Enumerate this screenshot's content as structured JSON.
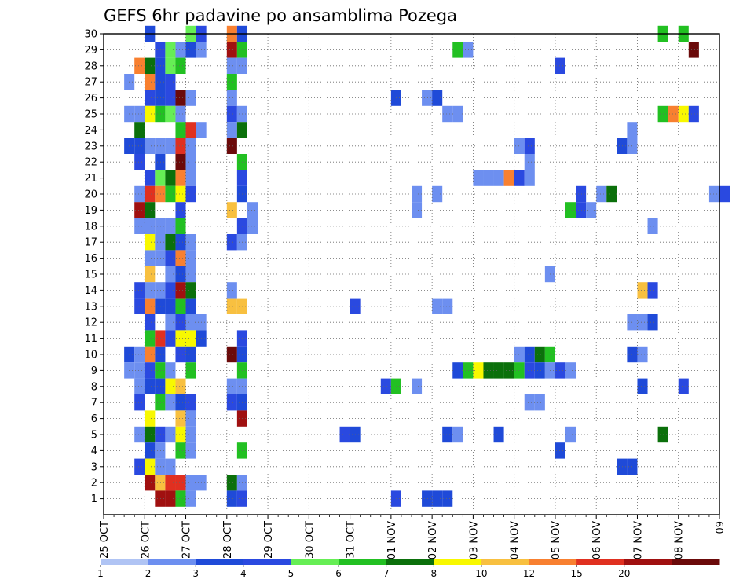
{
  "chart_data": {
    "type": "heatmap",
    "title": "GEFS 6hr padavine po ansamblima Pozega",
    "x_ticks": [
      "25 OCT",
      "26 OCT",
      "27 OCT",
      "28 OCT",
      "29 OCT",
      "30 OCT",
      "31 OCT",
      "01 NOV",
      "02 NOV",
      "03 NOV",
      "04 NOV",
      "05 NOV",
      "06 NOV",
      "07 NOV",
      "08 NOV",
      "09"
    ],
    "y_ticks": [
      "1",
      "2",
      "3",
      "4",
      "5",
      "6",
      "7",
      "8",
      "9",
      "10",
      "11",
      "12",
      "13",
      "14",
      "15",
      "16",
      "17",
      "18",
      "19",
      "20",
      "21",
      "22",
      "23",
      "24",
      "25",
      "26",
      "27",
      "28",
      "29",
      "30"
    ],
    "x_range_days": [
      0,
      15
    ],
    "y_range": [
      0,
      30
    ],
    "grid": true,
    "legend_placement": "bottom",
    "legend": {
      "labels": [
        "1",
        "2",
        "3",
        "4",
        "5",
        "6",
        "7",
        "8",
        "10",
        "12",
        "15",
        "20"
      ],
      "colors": [
        "#b0c4f4",
        "#6d8ff0",
        "#1f4ad8",
        "#2a49e0",
        "#66ee55",
        "#22c022",
        "#0b700b",
        "#f8f800",
        "#f8c040",
        "#f88030",
        "#e03020",
        "#a01010",
        "#6b0a0a"
      ]
    },
    "cell_width_hours": 6,
    "cells": [
      {
        "m": 30,
        "t": 1.0,
        "c": 2
      },
      {
        "m": 30,
        "t": 2.0,
        "c": 4
      },
      {
        "m": 30,
        "t": 2.25,
        "c": 3
      },
      {
        "m": 30,
        "t": 3.0,
        "c": 9
      },
      {
        "m": 30,
        "t": 3.25,
        "c": 2
      },
      {
        "m": 30,
        "t": 13.5,
        "c": 5
      },
      {
        "m": 30,
        "t": 14.0,
        "c": 5
      },
      {
        "m": 29,
        "t": 1.25,
        "c": 3
      },
      {
        "m": 29,
        "t": 1.5,
        "c": 4
      },
      {
        "m": 29,
        "t": 1.75,
        "c": 1
      },
      {
        "m": 29,
        "t": 2.0,
        "c": 2
      },
      {
        "m": 29,
        "t": 2.25,
        "c": 1
      },
      {
        "m": 29,
        "t": 3.0,
        "c": 11
      },
      {
        "m": 29,
        "t": 3.25,
        "c": 5
      },
      {
        "m": 29,
        "t": 8.5,
        "c": 5
      },
      {
        "m": 29,
        "t": 8.75,
        "c": 1
      },
      {
        "m": 29,
        "t": 14.25,
        "c": 12
      },
      {
        "m": 28,
        "t": 0.75,
        "c": 9
      },
      {
        "m": 28,
        "t": 1.0,
        "c": 6
      },
      {
        "m": 28,
        "t": 1.25,
        "c": 2
      },
      {
        "m": 28,
        "t": 1.5,
        "c": 4
      },
      {
        "m": 28,
        "t": 1.75,
        "c": 5
      },
      {
        "m": 28,
        "t": 3.0,
        "c": 1
      },
      {
        "m": 28,
        "t": 3.25,
        "c": 1
      },
      {
        "m": 28,
        "t": 11.0,
        "c": 3
      },
      {
        "m": 27,
        "t": 0.5,
        "c": 1
      },
      {
        "m": 27,
        "t": 1.0,
        "c": 9
      },
      {
        "m": 27,
        "t": 1.25,
        "c": 2
      },
      {
        "m": 27,
        "t": 1.5,
        "c": 3
      },
      {
        "m": 27,
        "t": 3.0,
        "c": 5
      },
      {
        "m": 26,
        "t": 1.0,
        "c": 3
      },
      {
        "m": 26,
        "t": 1.25,
        "c": 2
      },
      {
        "m": 26,
        "t": 1.5,
        "c": 3
      },
      {
        "m": 26,
        "t": 1.75,
        "c": 12
      },
      {
        "m": 26,
        "t": 2.0,
        "c": 1
      },
      {
        "m": 26,
        "t": 3.0,
        "c": 1
      },
      {
        "m": 26,
        "t": 7.0,
        "c": 2
      },
      {
        "m": 26,
        "t": 7.75,
        "c": 1
      },
      {
        "m": 26,
        "t": 8.0,
        "c": 2
      },
      {
        "m": 25,
        "t": 0.5,
        "c": 1
      },
      {
        "m": 25,
        "t": 0.75,
        "c": 1
      },
      {
        "m": 25,
        "t": 1.0,
        "c": 7
      },
      {
        "m": 25,
        "t": 1.25,
        "c": 5
      },
      {
        "m": 25,
        "t": 1.5,
        "c": 4
      },
      {
        "m": 25,
        "t": 1.75,
        "c": 1
      },
      {
        "m": 25,
        "t": 3.0,
        "c": 3
      },
      {
        "m": 25,
        "t": 3.25,
        "c": 1
      },
      {
        "m": 25,
        "t": 8.25,
        "c": 1
      },
      {
        "m": 25,
        "t": 8.5,
        "c": 1
      },
      {
        "m": 25,
        "t": 13.5,
        "c": 5
      },
      {
        "m": 25,
        "t": 13.75,
        "c": 9
      },
      {
        "m": 25,
        "t": 14.0,
        "c": 7
      },
      {
        "m": 25,
        "t": 14.25,
        "c": 3
      },
      {
        "m": 24,
        "t": 0.75,
        "c": 6
      },
      {
        "m": 24,
        "t": 1.75,
        "c": 5
      },
      {
        "m": 24,
        "t": 2.0,
        "c": 10
      },
      {
        "m": 24,
        "t": 2.25,
        "c": 1
      },
      {
        "m": 24,
        "t": 3.0,
        "c": 1
      },
      {
        "m": 24,
        "t": 3.25,
        "c": 6
      },
      {
        "m": 24,
        "t": 12.75,
        "c": 1
      },
      {
        "m": 23,
        "t": 0.5,
        "c": 2
      },
      {
        "m": 23,
        "t": 0.75,
        "c": 2
      },
      {
        "m": 23,
        "t": 1.0,
        "c": 1
      },
      {
        "m": 23,
        "t": 1.25,
        "c": 1
      },
      {
        "m": 23,
        "t": 1.5,
        "c": 1
      },
      {
        "m": 23,
        "t": 1.75,
        "c": 10
      },
      {
        "m": 23,
        "t": 2.0,
        "c": 1
      },
      {
        "m": 23,
        "t": 3.0,
        "c": 12
      },
      {
        "m": 23,
        "t": 10.0,
        "c": 1
      },
      {
        "m": 23,
        "t": 10.25,
        "c": 3
      },
      {
        "m": 23,
        "t": 12.5,
        "c": 2
      },
      {
        "m": 23,
        "t": 12.75,
        "c": 1
      },
      {
        "m": 22,
        "t": 0.75,
        "c": 3
      },
      {
        "m": 22,
        "t": 1.25,
        "c": 2
      },
      {
        "m": 22,
        "t": 1.75,
        "c": 12
      },
      {
        "m": 22,
        "t": 2.0,
        "c": 1
      },
      {
        "m": 22,
        "t": 3.25,
        "c": 5
      },
      {
        "m": 22,
        "t": 10.25,
        "c": 1
      },
      {
        "m": 21,
        "t": 1.0,
        "c": 3
      },
      {
        "m": 21,
        "t": 1.25,
        "c": 4
      },
      {
        "m": 21,
        "t": 1.5,
        "c": 6
      },
      {
        "m": 21,
        "t": 1.75,
        "c": 9
      },
      {
        "m": 21,
        "t": 2.0,
        "c": 1
      },
      {
        "m": 21,
        "t": 3.25,
        "c": 3
      },
      {
        "m": 21,
        "t": 9.0,
        "c": 1
      },
      {
        "m": 21,
        "t": 9.25,
        "c": 1
      },
      {
        "m": 21,
        "t": 9.5,
        "c": 1
      },
      {
        "m": 21,
        "t": 9.75,
        "c": 9
      },
      {
        "m": 21,
        "t": 10.0,
        "c": 3
      },
      {
        "m": 21,
        "t": 10.25,
        "c": 1
      },
      {
        "m": 20,
        "t": 0.75,
        "c": 1
      },
      {
        "m": 20,
        "t": 1.0,
        "c": 10
      },
      {
        "m": 20,
        "t": 1.25,
        "c": 9
      },
      {
        "m": 20,
        "t": 1.5,
        "c": 5
      },
      {
        "m": 20,
        "t": 1.75,
        "c": 7
      },
      {
        "m": 20,
        "t": 2.0,
        "c": 3
      },
      {
        "m": 20,
        "t": 3.25,
        "c": 2
      },
      {
        "m": 20,
        "t": 7.5,
        "c": 1
      },
      {
        "m": 20,
        "t": 8.0,
        "c": 1
      },
      {
        "m": 20,
        "t": 11.5,
        "c": 3
      },
      {
        "m": 20,
        "t": 12.0,
        "c": 1
      },
      {
        "m": 20,
        "t": 12.25,
        "c": 6
      },
      {
        "m": 20,
        "t": 14.75,
        "c": 1
      },
      {
        "m": 20,
        "t": 15.0,
        "c": 3
      },
      {
        "m": 19,
        "t": 0.75,
        "c": 11
      },
      {
        "m": 19,
        "t": 1.0,
        "c": 6
      },
      {
        "m": 19,
        "t": 1.75,
        "c": 3
      },
      {
        "m": 19,
        "t": 3.0,
        "c": 8
      },
      {
        "m": 19,
        "t": 3.5,
        "c": 1
      },
      {
        "m": 19,
        "t": 7.5,
        "c": 1
      },
      {
        "m": 19,
        "t": 11.25,
        "c": 5
      },
      {
        "m": 19,
        "t": 11.5,
        "c": 3
      },
      {
        "m": 19,
        "t": 11.75,
        "c": 1
      },
      {
        "m": 18,
        "t": 0.75,
        "c": 1
      },
      {
        "m": 18,
        "t": 1.0,
        "c": 1
      },
      {
        "m": 18,
        "t": 1.25,
        "c": 1
      },
      {
        "m": 18,
        "t": 1.5,
        "c": 1
      },
      {
        "m": 18,
        "t": 1.75,
        "c": 5
      },
      {
        "m": 18,
        "t": 3.25,
        "c": 3
      },
      {
        "m": 18,
        "t": 3.5,
        "c": 1
      },
      {
        "m": 18,
        "t": 13.25,
        "c": 1
      },
      {
        "m": 17,
        "t": 1.0,
        "c": 7
      },
      {
        "m": 17,
        "t": 1.25,
        "c": 1
      },
      {
        "m": 17,
        "t": 1.5,
        "c": 6
      },
      {
        "m": 17,
        "t": 1.75,
        "c": 2
      },
      {
        "m": 17,
        "t": 2.0,
        "c": 1
      },
      {
        "m": 17,
        "t": 3.0,
        "c": 3
      },
      {
        "m": 17,
        "t": 3.25,
        "c": 1
      },
      {
        "m": 16,
        "t": 1.0,
        "c": 1
      },
      {
        "m": 16,
        "t": 1.25,
        "c": 1
      },
      {
        "m": 16,
        "t": 1.5,
        "c": 3
      },
      {
        "m": 16,
        "t": 1.75,
        "c": 9
      },
      {
        "m": 16,
        "t": 2.0,
        "c": 1
      },
      {
        "m": 15,
        "t": 1.0,
        "c": 8
      },
      {
        "m": 15,
        "t": 1.5,
        "c": 1
      },
      {
        "m": 15,
        "t": 1.75,
        "c": 2
      },
      {
        "m": 15,
        "t": 2.0,
        "c": 1
      },
      {
        "m": 15,
        "t": 10.75,
        "c": 1
      },
      {
        "m": 14,
        "t": 0.75,
        "c": 3
      },
      {
        "m": 14,
        "t": 1.0,
        "c": 1
      },
      {
        "m": 14,
        "t": 1.25,
        "c": 1
      },
      {
        "m": 14,
        "t": 1.5,
        "c": 3
      },
      {
        "m": 14,
        "t": 1.75,
        "c": 11
      },
      {
        "m": 14,
        "t": 2.0,
        "c": 6
      },
      {
        "m": 14,
        "t": 3.0,
        "c": 1
      },
      {
        "m": 14,
        "t": 13.0,
        "c": 8
      },
      {
        "m": 14,
        "t": 13.25,
        "c": 3
      },
      {
        "m": 13,
        "t": 0.75,
        "c": 3
      },
      {
        "m": 13,
        "t": 1.0,
        "c": 9
      },
      {
        "m": 13,
        "t": 1.25,
        "c": 2
      },
      {
        "m": 13,
        "t": 1.5,
        "c": 2
      },
      {
        "m": 13,
        "t": 1.75,
        "c": 5
      },
      {
        "m": 13,
        "t": 2.0,
        "c": 2
      },
      {
        "m": 13,
        "t": 3.0,
        "c": 8
      },
      {
        "m": 13,
        "t": 3.25,
        "c": 8
      },
      {
        "m": 13,
        "t": 6.0,
        "c": 3
      },
      {
        "m": 13,
        "t": 8.0,
        "c": 1
      },
      {
        "m": 13,
        "t": 8.25,
        "c": 1
      },
      {
        "m": 12,
        "t": 1.0,
        "c": 3
      },
      {
        "m": 12,
        "t": 1.5,
        "c": 1
      },
      {
        "m": 12,
        "t": 1.75,
        "c": 3
      },
      {
        "m": 12,
        "t": 2.0,
        "c": 1
      },
      {
        "m": 12,
        "t": 2.25,
        "c": 1
      },
      {
        "m": 12,
        "t": 12.75,
        "c": 1
      },
      {
        "m": 12,
        "t": 13.0,
        "c": 1
      },
      {
        "m": 12,
        "t": 13.25,
        "c": 2
      },
      {
        "m": 11,
        "t": 1.0,
        "c": 5
      },
      {
        "m": 11,
        "t": 1.25,
        "c": 10
      },
      {
        "m": 11,
        "t": 1.5,
        "c": 3
      },
      {
        "m": 11,
        "t": 1.75,
        "c": 7
      },
      {
        "m": 11,
        "t": 2.0,
        "c": 7
      },
      {
        "m": 11,
        "t": 2.25,
        "c": 2
      },
      {
        "m": 11,
        "t": 3.25,
        "c": 3
      },
      {
        "m": 10,
        "t": 0.5,
        "c": 2
      },
      {
        "m": 10,
        "t": 0.75,
        "c": 1
      },
      {
        "m": 10,
        "t": 1.0,
        "c": 9
      },
      {
        "m": 10,
        "t": 1.25,
        "c": 2
      },
      {
        "m": 10,
        "t": 1.75,
        "c": 3
      },
      {
        "m": 10,
        "t": 2.0,
        "c": 2
      },
      {
        "m": 10,
        "t": 3.0,
        "c": 12
      },
      {
        "m": 10,
        "t": 3.25,
        "c": 2
      },
      {
        "m": 10,
        "t": 10.0,
        "c": 1
      },
      {
        "m": 10,
        "t": 10.25,
        "c": 2
      },
      {
        "m": 10,
        "t": 10.5,
        "c": 6
      },
      {
        "m": 10,
        "t": 10.75,
        "c": 5
      },
      {
        "m": 10,
        "t": 12.75,
        "c": 2
      },
      {
        "m": 10,
        "t": 13.0,
        "c": 1
      },
      {
        "m": 9,
        "t": 0.5,
        "c": 1
      },
      {
        "m": 9,
        "t": 0.75,
        "c": 1
      },
      {
        "m": 9,
        "t": 1.0,
        "c": 3
      },
      {
        "m": 9,
        "t": 1.25,
        "c": 5
      },
      {
        "m": 9,
        "t": 1.5,
        "c": 1
      },
      {
        "m": 9,
        "t": 2.0,
        "c": 5
      },
      {
        "m": 9,
        "t": 3.25,
        "c": 5
      },
      {
        "m": 9,
        "t": 8.5,
        "c": 2
      },
      {
        "m": 9,
        "t": 8.75,
        "c": 5
      },
      {
        "m": 9,
        "t": 9.0,
        "c": 7
      },
      {
        "m": 9,
        "t": 9.25,
        "c": 6
      },
      {
        "m": 9,
        "t": 9.5,
        "c": 6
      },
      {
        "m": 9,
        "t": 9.75,
        "c": 6
      },
      {
        "m": 9,
        "t": 10.0,
        "c": 5
      },
      {
        "m": 9,
        "t": 10.25,
        "c": 3
      },
      {
        "m": 9,
        "t": 10.5,
        "c": 2
      },
      {
        "m": 9,
        "t": 10.75,
        "c": 1
      },
      {
        "m": 9,
        "t": 11.0,
        "c": 3
      },
      {
        "m": 9,
        "t": 11.25,
        "c": 1
      },
      {
        "m": 8,
        "t": 0.75,
        "c": 1
      },
      {
        "m": 8,
        "t": 1.0,
        "c": 2
      },
      {
        "m": 8,
        "t": 1.25,
        "c": 2
      },
      {
        "m": 8,
        "t": 1.5,
        "c": 7
      },
      {
        "m": 8,
        "t": 1.75,
        "c": 8
      },
      {
        "m": 8,
        "t": 3.0,
        "c": 1
      },
      {
        "m": 8,
        "t": 3.25,
        "c": 1
      },
      {
        "m": 8,
        "t": 6.75,
        "c": 3
      },
      {
        "m": 8,
        "t": 7.0,
        "c": 5
      },
      {
        "m": 8,
        "t": 7.5,
        "c": 1
      },
      {
        "m": 8,
        "t": 13.0,
        "c": 2
      },
      {
        "m": 8,
        "t": 14.0,
        "c": 3
      },
      {
        "m": 7,
        "t": 0.75,
        "c": 3
      },
      {
        "m": 7,
        "t": 1.25,
        "c": 5
      },
      {
        "m": 7,
        "t": 1.5,
        "c": 1
      },
      {
        "m": 7,
        "t": 1.75,
        "c": 2
      },
      {
        "m": 7,
        "t": 2.0,
        "c": 3
      },
      {
        "m": 7,
        "t": 3.0,
        "c": 3
      },
      {
        "m": 7,
        "t": 3.25,
        "c": 2
      },
      {
        "m": 7,
        "t": 10.25,
        "c": 1
      },
      {
        "m": 7,
        "t": 10.5,
        "c": 1
      },
      {
        "m": 6,
        "t": 1.0,
        "c": 7
      },
      {
        "m": 6,
        "t": 1.75,
        "c": 8
      },
      {
        "m": 6,
        "t": 2.0,
        "c": 1
      },
      {
        "m": 6,
        "t": 3.25,
        "c": 11
      },
      {
        "m": 5,
        "t": 0.75,
        "c": 1
      },
      {
        "m": 5,
        "t": 1.0,
        "c": 6
      },
      {
        "m": 5,
        "t": 1.25,
        "c": 3
      },
      {
        "m": 5,
        "t": 1.5,
        "c": 1
      },
      {
        "m": 5,
        "t": 1.75,
        "c": 7
      },
      {
        "m": 5,
        "t": 2.0,
        "c": 1
      },
      {
        "m": 5,
        "t": 5.75,
        "c": 3
      },
      {
        "m": 5,
        "t": 6.0,
        "c": 2
      },
      {
        "m": 5,
        "t": 8.25,
        "c": 2
      },
      {
        "m": 5,
        "t": 8.5,
        "c": 1
      },
      {
        "m": 5,
        "t": 9.5,
        "c": 2
      },
      {
        "m": 5,
        "t": 11.25,
        "c": 1
      },
      {
        "m": 5,
        "t": 13.5,
        "c": 6
      },
      {
        "m": 4,
        "t": 1.0,
        "c": 2
      },
      {
        "m": 4,
        "t": 1.25,
        "c": 1
      },
      {
        "m": 4,
        "t": 1.75,
        "c": 5
      },
      {
        "m": 4,
        "t": 2.0,
        "c": 1
      },
      {
        "m": 4,
        "t": 3.25,
        "c": 5
      },
      {
        "m": 4,
        "t": 11.0,
        "c": 2
      },
      {
        "m": 3,
        "t": 0.75,
        "c": 3
      },
      {
        "m": 3,
        "t": 1.0,
        "c": 7
      },
      {
        "m": 3,
        "t": 1.25,
        "c": 1
      },
      {
        "m": 3,
        "t": 1.5,
        "c": 1
      },
      {
        "m": 3,
        "t": 12.5,
        "c": 2
      },
      {
        "m": 3,
        "t": 12.75,
        "c": 2
      },
      {
        "m": 2,
        "t": 1.0,
        "c": 11
      },
      {
        "m": 2,
        "t": 1.25,
        "c": 8
      },
      {
        "m": 2,
        "t": 1.5,
        "c": 10
      },
      {
        "m": 2,
        "t": 1.75,
        "c": 10
      },
      {
        "m": 2,
        "t": 2.0,
        "c": 1
      },
      {
        "m": 2,
        "t": 2.25,
        "c": 1
      },
      {
        "m": 2,
        "t": 3.0,
        "c": 6
      },
      {
        "m": 2,
        "t": 3.25,
        "c": 1
      },
      {
        "m": 1,
        "t": 1.25,
        "c": 11
      },
      {
        "m": 1,
        "t": 1.5,
        "c": 11
      },
      {
        "m": 1,
        "t": 1.75,
        "c": 5
      },
      {
        "m": 1,
        "t": 2.0,
        "c": 1
      },
      {
        "m": 1,
        "t": 3.0,
        "c": 2
      },
      {
        "m": 1,
        "t": 3.25,
        "c": 3
      },
      {
        "m": 1,
        "t": 7.0,
        "c": 3
      },
      {
        "m": 1,
        "t": 7.75,
        "c": 2
      },
      {
        "m": 1,
        "t": 8.0,
        "c": 2
      },
      {
        "m": 1,
        "t": 8.25,
        "c": 2
      }
    ]
  }
}
